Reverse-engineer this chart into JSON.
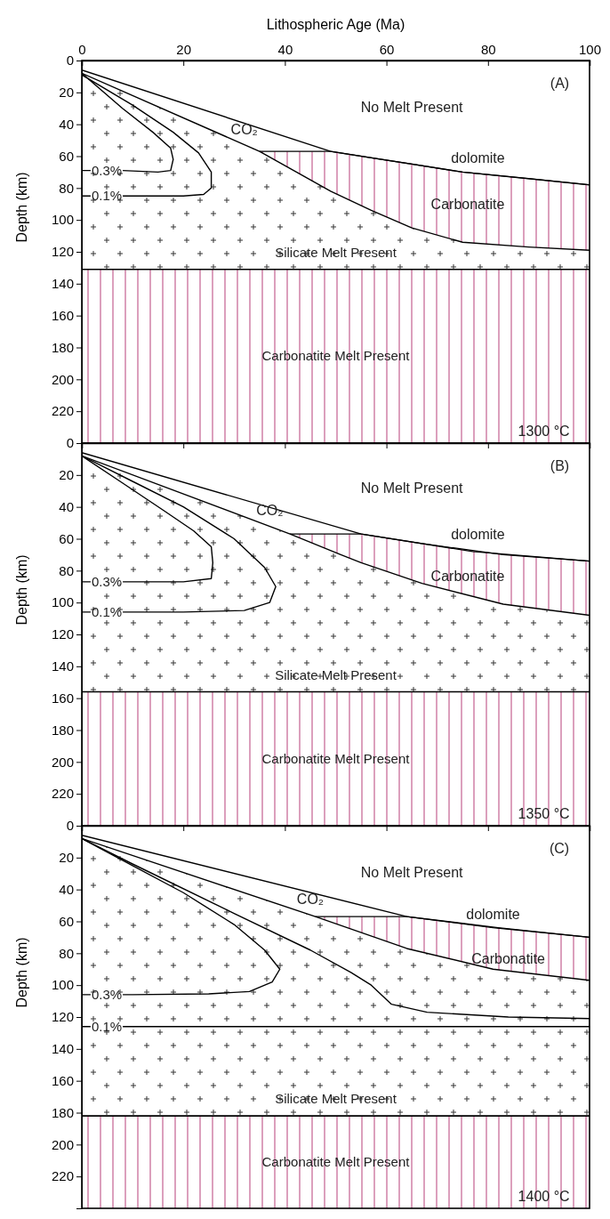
{
  "chart_data": [
    {
      "type": "line",
      "xlabel": "Lithospheric Age (Ma)",
      "ylabel": "Depth (km)",
      "xlim": [
        0,
        100
      ],
      "xticks": [
        0,
        20,
        40,
        60,
        80,
        100
      ],
      "ylim": [
        240,
        0
      ],
      "yticks": [
        0,
        20,
        40,
        60,
        80,
        100,
        120,
        140,
        160,
        180,
        200,
        220
      ],
      "series": [
        {
          "color": "#000000",
          "x": [
            0,
            49,
            75,
            100
          ],
          "values": [
            6,
            57,
            70,
            78
          ]
        },
        {
          "color": "#000000",
          "x": [
            0,
            35,
            49,
            57,
            65,
            75,
            88,
            100
          ],
          "values": [
            8,
            57,
            82,
            94,
            105,
            114,
            117,
            119
          ],
          "lower": [
            null,
            57,
            57,
            61,
            65,
            70,
            74,
            78
          ],
          "upper": [
            null,
            57,
            82,
            94,
            105,
            114,
            117,
            119
          ]
        },
        {
          "name": "0.3%",
          "color": "#000000",
          "x": [
            0,
            8,
            15,
            17.5,
            18,
            17.5,
            14,
            8,
            0
          ],
          "values": [
            69,
            69,
            70,
            69,
            62,
            55,
            45,
            30,
            8
          ]
        },
        {
          "name": "0.1%",
          "color": "#000000",
          "x": [
            0,
            10,
            20,
            24,
            25.5,
            25.5,
            23,
            18,
            10,
            0
          ],
          "values": [
            85,
            85,
            85,
            84,
            80,
            70,
            58,
            45,
            28,
            9
          ]
        }
      ],
      "bands": [
        {
          "axis": "y",
          "from": 0,
          "to": 131,
          "color": "#333333",
          "label": "Silicate Melt Present"
        },
        {
          "axis": "y",
          "from": 131,
          "to": 240,
          "color": "#b8407a",
          "label": "Carbonatite Melt Present"
        }
      ],
      "ref_lines": [
        {
          "axis": "y",
          "value": 131
        }
      ],
      "annotations": [
        "(A)",
        "No Melt Present",
        "CO₂",
        "dolomite",
        "Carbonatite",
        "1300 °C"
      ]
    },
    {
      "type": "line",
      "ylabel": "Depth (km)",
      "xlim": [
        0,
        100
      ],
      "xticks": [
        0,
        20,
        40,
        60,
        80,
        100
      ],
      "ylim": [
        240,
        0
      ],
      "yticks": [
        0,
        20,
        40,
        60,
        80,
        100,
        120,
        140,
        160,
        180,
        200,
        220
      ],
      "tick_labels": "y",
      "series": [
        {
          "color": "#000000",
          "x": [
            0,
            55,
            77,
            100
          ],
          "values": [
            6,
            57,
            68,
            74
          ]
        },
        {
          "color": "#000000",
          "x": [
            0,
            41,
            51,
            55,
            67,
            83,
            100
          ],
          "values": [
            8,
            57,
            70,
            75,
            88,
            101,
            108
          ],
          "lower": [
            null,
            57,
            57,
            57,
            63,
            70,
            74
          ],
          "upper": [
            null,
            57,
            70,
            75,
            88,
            101,
            108
          ]
        },
        {
          "name": "0.3%",
          "color": "#000000",
          "x": [
            0,
            10,
            20,
            25.5,
            25.8,
            25.5,
            22,
            16,
            8,
            0
          ],
          "values": [
            87,
            87,
            87,
            85,
            75,
            65,
            55,
            42,
            25,
            8
          ]
        },
        {
          "name": "0.1%",
          "color": "#000000",
          "x": [
            0,
            20,
            32,
            37,
            38.2,
            36,
            30,
            20,
            10,
            0
          ],
          "values": [
            106,
            106,
            105,
            100,
            90,
            78,
            60,
            40,
            24,
            8
          ]
        }
      ],
      "bands": [
        {
          "axis": "y",
          "from": 0,
          "to": 156,
          "color": "#333333",
          "label": "Silicate Melt Present"
        },
        {
          "axis": "y",
          "from": 156,
          "to": 240,
          "color": "#b8407a",
          "label": "Carbonatite Melt Present"
        }
      ],
      "ref_lines": [
        {
          "axis": "y",
          "value": 156
        }
      ],
      "annotations": [
        "(B)",
        "No Melt Present",
        "CO₂",
        "dolomite",
        "Carbonatite",
        "1350 °C"
      ]
    },
    {
      "type": "line",
      "ylabel": "Depth (km)",
      "xlim": [
        0,
        100
      ],
      "xticks": [
        0,
        20,
        40,
        60,
        80,
        100
      ],
      "ylim": [
        240,
        0
      ],
      "yticks": [
        0,
        20,
        40,
        60,
        80,
        100,
        120,
        140,
        160,
        180,
        200,
        220
      ],
      "tick_labels": "y",
      "series": [
        {
          "color": "#000000",
          "x": [
            0,
            64,
            82,
            100
          ],
          "values": [
            6,
            57,
            64,
            70
          ]
        },
        {
          "color": "#000000",
          "x": [
            0,
            46,
            64,
            81,
            100
          ],
          "values": [
            8,
            57,
            77,
            90,
            97
          ],
          "lower": [
            null,
            57,
            57,
            64,
            70
          ],
          "upper": [
            null,
            57,
            77,
            90,
            97
          ]
        },
        {
          "name": "0.3%",
          "color": "#000000",
          "x": [
            0,
            10,
            25,
            33,
            37.5,
            39,
            36,
            30,
            20,
            10,
            0
          ],
          "values": [
            106,
            106,
            105.5,
            104,
            98,
            90,
            78,
            62,
            42,
            25,
            8
          ]
        },
        {
          "name": "0.1%",
          "color": "#000000",
          "x": [
            0,
            100,
            100,
            84,
            68,
            61,
            57,
            53,
            45,
            30,
            10,
            0
          ],
          "values": [
            126,
            126,
            121,
            120,
            117,
            112,
            100,
            92,
            78,
            55,
            24,
            8
          ]
        }
      ],
      "bands": [
        {
          "axis": "y",
          "from": 0,
          "to": 182,
          "color": "#333333",
          "label": "Silicate Melt Present"
        },
        {
          "axis": "y",
          "from": 182,
          "to": 240,
          "color": "#b8407a",
          "label": "Carbonatite Melt Present"
        }
      ],
      "ref_lines": [
        {
          "axis": "y",
          "value": 182
        }
      ],
      "annotations": [
        "(C)",
        "No Melt Present",
        "CO₂",
        "dolomite",
        "Carbonatite",
        "1400 °C"
      ]
    }
  ]
}
